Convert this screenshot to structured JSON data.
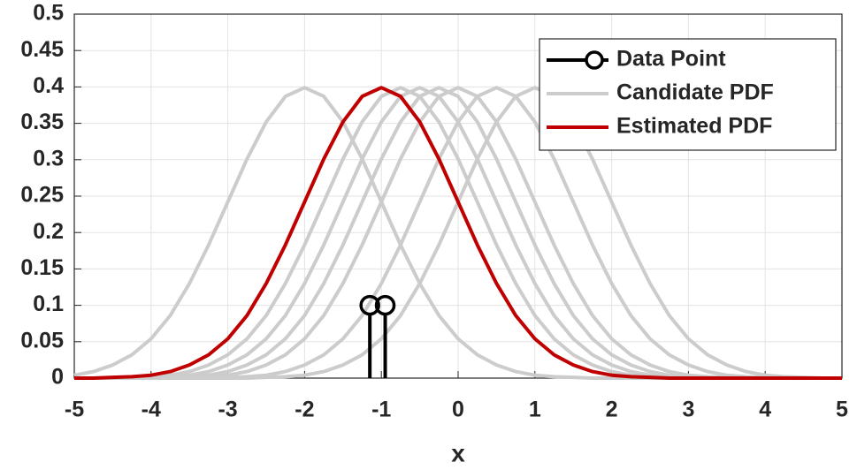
{
  "chart_data": {
    "type": "line",
    "xlabel": "x",
    "xlim": [
      -5,
      5
    ],
    "xticks": [
      -5,
      -4,
      -3,
      -2,
      -1,
      0,
      1,
      2,
      3,
      4,
      5
    ],
    "ylim": [
      0,
      0.5
    ],
    "yticks": [
      0,
      0.05,
      0.1,
      0.15,
      0.2,
      0.25,
      0.3,
      0.35,
      0.4,
      0.45,
      0.5
    ],
    "grid": true,
    "legend": "upper right",
    "x": [
      -5,
      -4.75,
      -4.5,
      -4.25,
      -4,
      -3.75,
      -3.5,
      -3.25,
      -3,
      -2.75,
      -2.5,
      -2.25,
      -2,
      -1.75,
      -1.5,
      -1.25,
      -1,
      -0.75,
      -0.5,
      -0.25,
      0,
      0.25,
      0.5,
      0.75,
      1,
      1.25,
      1.5,
      1.75,
      2,
      2.25,
      2.5,
      2.75,
      3,
      3.25,
      3.5,
      3.75,
      4,
      4.25,
      4.5,
      4.75,
      5
    ],
    "series": [
      {
        "name": "Data Point",
        "color": "#000000",
        "x": [
          -1.15,
          -0.95
        ],
        "values": [
          0.1,
          0.1
        ]
      },
      {
        "name": "Candidate PDF",
        "color": "#cccccc",
        "values": [
          [
            0.004,
            0.009,
            0.018,
            0.032,
            0.054,
            0.086,
            0.13,
            0.183,
            0.242,
            0.301,
            0.352,
            0.387,
            0.399,
            0.387,
            0.352,
            0.301,
            0.242,
            0.183,
            0.13,
            0.086,
            0.054,
            0.032,
            0.018,
            0.009,
            0.004,
            0.002,
            0.001,
            0,
            0,
            0,
            0,
            0,
            0,
            0,
            0,
            0,
            0,
            0,
            0,
            0,
            0
          ],
          [
            0,
            0,
            0,
            0.001,
            0.002,
            0.004,
            0.009,
            0.018,
            0.032,
            0.054,
            0.086,
            0.13,
            0.183,
            0.242,
            0.301,
            0.352,
            0.387,
            0.399,
            0.387,
            0.352,
            0.301,
            0.242,
            0.183,
            0.13,
            0.086,
            0.054,
            0.032,
            0.018,
            0.009,
            0.004,
            0.002,
            0.001,
            0,
            0,
            0,
            0,
            0,
            0,
            0,
            0,
            0
          ],
          [
            0,
            0,
            0,
            0,
            0.001,
            0.002,
            0.004,
            0.009,
            0.018,
            0.032,
            0.054,
            0.086,
            0.13,
            0.183,
            0.242,
            0.301,
            0.352,
            0.387,
            0.399,
            0.387,
            0.352,
            0.301,
            0.242,
            0.183,
            0.13,
            0.086,
            0.054,
            0.032,
            0.018,
            0.009,
            0.004,
            0.002,
            0.001,
            0,
            0,
            0,
            0,
            0,
            0,
            0,
            0
          ],
          [
            0,
            0,
            0,
            0,
            0,
            0.001,
            0.002,
            0.004,
            0.009,
            0.018,
            0.032,
            0.054,
            0.086,
            0.13,
            0.183,
            0.242,
            0.301,
            0.352,
            0.387,
            0.399,
            0.387,
            0.352,
            0.301,
            0.242,
            0.183,
            0.13,
            0.086,
            0.054,
            0.032,
            0.018,
            0.009,
            0.004,
            0.002,
            0.001,
            0,
            0,
            0,
            0,
            0,
            0,
            0
          ],
          [
            0,
            0,
            0,
            0,
            0,
            0,
            0.001,
            0.002,
            0.004,
            0.009,
            0.018,
            0.032,
            0.054,
            0.086,
            0.13,
            0.183,
            0.242,
            0.301,
            0.352,
            0.387,
            0.399,
            0.387,
            0.352,
            0.301,
            0.242,
            0.183,
            0.13,
            0.086,
            0.054,
            0.032,
            0.018,
            0.009,
            0.004,
            0.002,
            0.001,
            0,
            0,
            0,
            0,
            0,
            0
          ],
          [
            0,
            0,
            0,
            0,
            0,
            0,
            0,
            0,
            0.001,
            0.002,
            0.004,
            0.009,
            0.018,
            0.032,
            0.054,
            0.086,
            0.13,
            0.183,
            0.242,
            0.301,
            0.352,
            0.387,
            0.399,
            0.387,
            0.352,
            0.301,
            0.242,
            0.183,
            0.13,
            0.086,
            0.054,
            0.032,
            0.018,
            0.009,
            0.004,
            0.002,
            0.001,
            0,
            0,
            0,
            0
          ],
          [
            0,
            0,
            0,
            0,
            0,
            0,
            0,
            0,
            0,
            0,
            0.001,
            0.002,
            0.004,
            0.009,
            0.018,
            0.032,
            0.054,
            0.086,
            0.13,
            0.183,
            0.242,
            0.301,
            0.352,
            0.387,
            0.399,
            0.387,
            0.352,
            0.301,
            0.242,
            0.183,
            0.13,
            0.086,
            0.054,
            0.032,
            0.018,
            0.009,
            0.004,
            0.002,
            0.001,
            0,
            0
          ]
        ]
      },
      {
        "name": "Estimated PDF",
        "color": "#c00000",
        "values": [
          0,
          0,
          0.001,
          0.002,
          0.004,
          0.009,
          0.018,
          0.032,
          0.054,
          0.086,
          0.13,
          0.183,
          0.242,
          0.301,
          0.352,
          0.387,
          0.399,
          0.387,
          0.352,
          0.301,
          0.242,
          0.183,
          0.13,
          0.086,
          0.054,
          0.032,
          0.018,
          0.009,
          0.004,
          0.002,
          0.001,
          0,
          0,
          0,
          0,
          0,
          0,
          0,
          0,
          0,
          0
        ]
      }
    ]
  }
}
